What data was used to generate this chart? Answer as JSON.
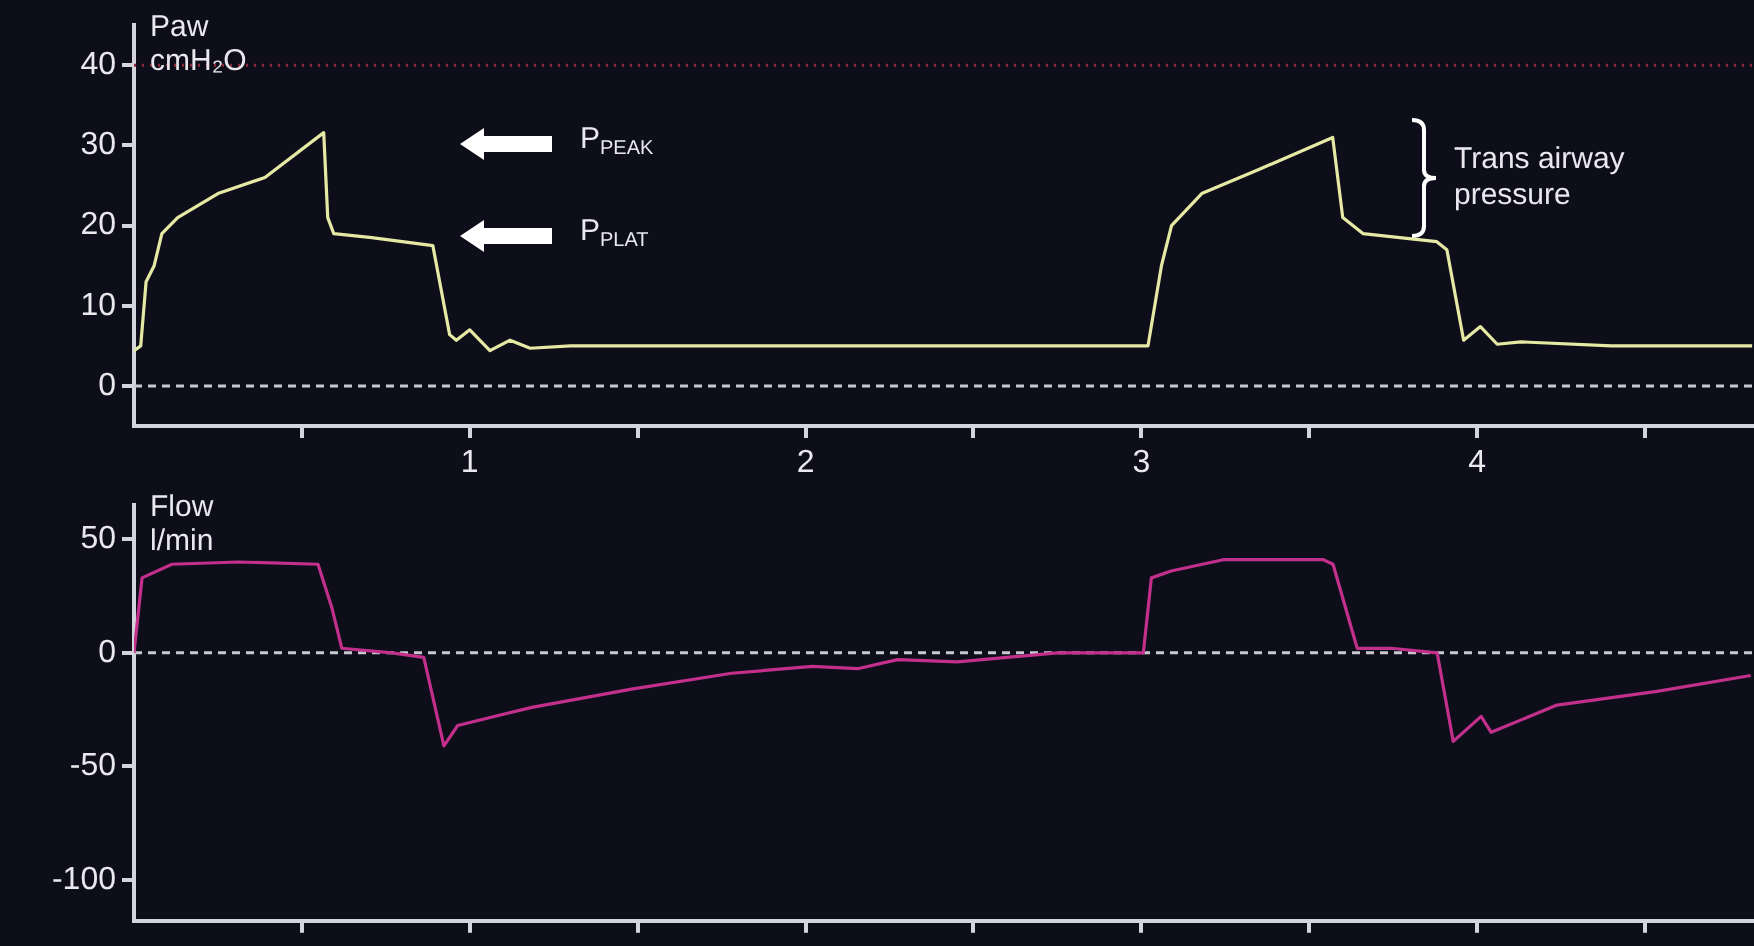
{
  "chart_data": [
    {
      "type": "line",
      "ylabel": "Paw\ncmH₂O",
      "x": [
        0,
        0.02,
        0.036,
        0.06,
        0.083,
        0.13,
        0.25,
        0.39,
        0.565,
        0.577,
        0.595,
        0.708,
        0.89,
        0.94,
        0.96,
        1.0,
        1.06,
        1.12,
        1.18,
        1.3,
        2.0,
        2.98,
        3.02,
        3.06,
        3.09,
        3.18,
        3.35,
        3.57,
        3.6,
        3.66,
        3.88,
        3.91,
        3.96,
        4.01,
        4.06,
        4.13,
        4.4,
        4.82
      ],
      "values": [
        4.4,
        5,
        13,
        15,
        19,
        21,
        24,
        26,
        31.6,
        21,
        19,
        18.5,
        17.5,
        6.4,
        5.7,
        7,
        4.4,
        5.7,
        4.7,
        5,
        5,
        5,
        5,
        15,
        20,
        24,
        27,
        31,
        21,
        19,
        18,
        17,
        5.7,
        7.4,
        5.2,
        5.5,
        5,
        5
      ],
      "color": "#e6e9a4",
      "line_style": "solid",
      "marker": "none",
      "grid": false,
      "xlim": [
        0,
        4.82
      ],
      "xticks": [
        {
          "value": 0.5,
          "label": null
        },
        1,
        {
          "value": 1.5,
          "label": null
        },
        2,
        {
          "value": 2.5,
          "label": null
        },
        3,
        {
          "value": 3.5,
          "label": null
        },
        4,
        {
          "value": 4.5,
          "label": null
        }
      ],
      "ylim": [
        -5,
        45
      ],
      "yticks": [
        0,
        10,
        20,
        30,
        40
      ],
      "ref_lines": [
        {
          "axis": "y",
          "value": 40,
          "color": "#8a2a3c",
          "line_style": "dotted"
        },
        {
          "axis": "y",
          "value": 0,
          "color": "#c8c8d0",
          "line_style": "dashed"
        }
      ],
      "annotations": [
        "P$_{PEAK}$",
        "P$_{PLAT}$",
        "Trans airway\npressure"
      ]
    },
    {
      "type": "line",
      "ylabel": "Flow\nl/min",
      "x": [
        0,
        0.024,
        0.113,
        0.31,
        0.548,
        0.589,
        0.619,
        0.768,
        0.863,
        0.923,
        0.964,
        1.185,
        1.482,
        1.78,
        2.02,
        2.155,
        2.274,
        2.452,
        2.75,
        3.006,
        3.03,
        3.089,
        3.244,
        3.542,
        3.571,
        3.643,
        3.744,
        3.881,
        3.929,
        4.012,
        4.042,
        4.238,
        4.536,
        4.815
      ],
      "values": [
        0,
        33,
        39,
        40,
        39,
        20,
        2,
        0,
        -2,
        -41,
        -32,
        -24,
        -16,
        -9,
        -6,
        -7,
        -3,
        -4,
        0,
        0,
        33,
        36,
        41,
        41,
        39,
        2,
        2,
        0,
        -39,
        -28,
        -35,
        -23,
        -17,
        -10
      ],
      "color": "#c2308c",
      "line_style": "solid",
      "marker": "none",
      "grid": false,
      "tick_labels": "y",
      "xlim": [
        0,
        4.82
      ],
      "xticks": [
        {
          "value": 0.5,
          "label": null
        },
        {
          "value": 1,
          "label": null
        },
        {
          "value": 1.5,
          "label": null
        },
        {
          "value": 2,
          "label": null
        },
        {
          "value": 2.5,
          "label": null
        },
        {
          "value": 3,
          "label": null
        },
        {
          "value": 3.5,
          "label": null
        },
        {
          "value": 4,
          "label": null
        },
        {
          "value": 4.5,
          "label": null
        }
      ],
      "ylim": [
        -118,
        65
      ],
      "yticks": [
        -100,
        -50,
        0,
        50
      ],
      "ref_lines": [
        {
          "axis": "y",
          "value": 0,
          "color": "#c8c8d0",
          "line_style": "dashed"
        }
      ]
    }
  ]
}
